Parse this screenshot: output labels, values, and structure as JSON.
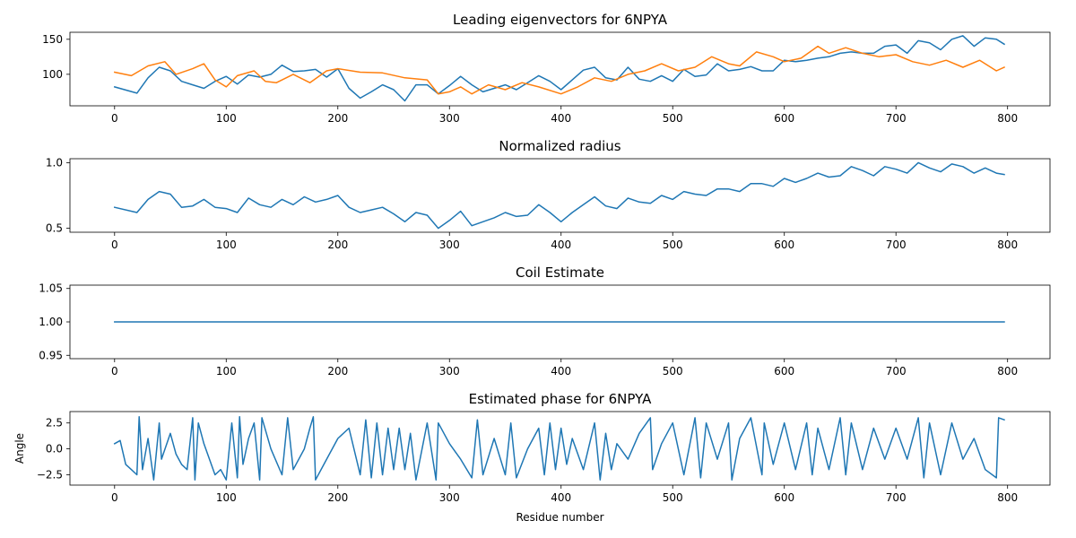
{
  "chart_data": [
    {
      "type": "line",
      "title": "Leading eigenvectors for 6NPYA",
      "xlabel": "",
      "ylabel": "",
      "xlim": [
        -40,
        838
      ],
      "ylim": [
        55,
        160
      ],
      "xticks": [
        0,
        100,
        200,
        300,
        400,
        500,
        600,
        700,
        800
      ],
      "yticks": [
        100,
        150
      ],
      "grid": false,
      "colors": [
        "#1f77b4",
        "#ff7f0e"
      ],
      "series": [
        {
          "x": [
            0,
            20,
            30,
            40,
            50,
            60,
            70,
            80,
            90,
            100,
            110,
            120,
            130,
            140,
            150,
            160,
            170,
            180,
            190,
            200,
            210,
            220,
            230,
            240,
            250,
            260,
            270,
            280,
            290,
            300,
            310,
            320,
            330,
            340,
            350,
            360,
            370,
            380,
            390,
            400,
            410,
            420,
            430,
            440,
            450,
            460,
            470,
            480,
            490,
            500,
            510,
            520,
            530,
            540,
            550,
            560,
            570,
            580,
            590,
            600,
            610,
            620,
            630,
            640,
            650,
            660,
            670,
            680,
            690,
            700,
            710,
            720,
            730,
            740,
            750,
            760,
            770,
            780,
            790,
            797
          ],
          "values": [
            82,
            73,
            95,
            110,
            105,
            90,
            85,
            80,
            90,
            97,
            86,
            99,
            96,
            100,
            113,
            104,
            105,
            107,
            96,
            108,
            80,
            66,
            75,
            85,
            78,
            62,
            85,
            85,
            72,
            84,
            97,
            85,
            75,
            80,
            85,
            78,
            88,
            98,
            90,
            78,
            92,
            106,
            110,
            95,
            92,
            110,
            93,
            90,
            98,
            90,
            107,
            97,
            99,
            115,
            105,
            107,
            111,
            105,
            105,
            120,
            118,
            120,
            123,
            125,
            130,
            132,
            130,
            130,
            140,
            142,
            130,
            148,
            145,
            135,
            150,
            155,
            140,
            152,
            150,
            143
          ]
        },
        {
          "x": [
            0,
            15,
            30,
            45,
            55,
            70,
            80,
            90,
            100,
            110,
            125,
            135,
            145,
            160,
            175,
            190,
            200,
            220,
            240,
            260,
            280,
            290,
            300,
            310,
            320,
            335,
            350,
            365,
            380,
            400,
            415,
            430,
            445,
            460,
            475,
            490,
            505,
            520,
            535,
            550,
            560,
            575,
            590,
            600,
            615,
            630,
            640,
            655,
            670,
            685,
            700,
            715,
            730,
            745,
            760,
            775,
            790,
            797
          ],
          "values": [
            103,
            98,
            112,
            118,
            100,
            108,
            115,
            92,
            82,
            98,
            105,
            90,
            88,
            100,
            88,
            105,
            108,
            103,
            102,
            95,
            92,
            72,
            75,
            82,
            72,
            85,
            78,
            88,
            82,
            72,
            82,
            95,
            90,
            100,
            105,
            115,
            105,
            110,
            125,
            115,
            112,
            132,
            125,
            118,
            123,
            140,
            130,
            138,
            130,
            125,
            128,
            118,
            113,
            120,
            110,
            120,
            105,
            110
          ]
        }
      ]
    },
    {
      "type": "line",
      "title": "Normalized radius",
      "xlabel": "",
      "ylabel": "",
      "xlim": [
        -40,
        838
      ],
      "ylim": [
        0.47,
        1.03
      ],
      "xticks": [
        0,
        100,
        200,
        300,
        400,
        500,
        600,
        700,
        800
      ],
      "yticks": [
        0.5,
        1.0
      ],
      "ytick_labels": [
        "0.5",
        "1.0"
      ],
      "grid": false,
      "colors": [
        "#1f77b4"
      ],
      "series": [
        {
          "x": [
            0,
            20,
            30,
            40,
            50,
            60,
            70,
            80,
            90,
            100,
            110,
            120,
            130,
            140,
            150,
            160,
            170,
            180,
            190,
            200,
            210,
            220,
            230,
            240,
            250,
            260,
            270,
            280,
            290,
            300,
            310,
            320,
            330,
            340,
            350,
            360,
            370,
            380,
            390,
            400,
            410,
            420,
            430,
            440,
            450,
            460,
            470,
            480,
            490,
            500,
            510,
            520,
            530,
            540,
            550,
            560,
            570,
            580,
            590,
            600,
            610,
            620,
            630,
            640,
            650,
            660,
            670,
            680,
            690,
            700,
            710,
            720,
            730,
            740,
            750,
            760,
            770,
            780,
            790,
            797
          ],
          "values": [
            0.66,
            0.62,
            0.72,
            0.78,
            0.76,
            0.66,
            0.67,
            0.72,
            0.66,
            0.65,
            0.62,
            0.73,
            0.68,
            0.66,
            0.72,
            0.68,
            0.74,
            0.7,
            0.72,
            0.75,
            0.66,
            0.62,
            0.64,
            0.66,
            0.61,
            0.55,
            0.62,
            0.6,
            0.5,
            0.56,
            0.63,
            0.52,
            0.55,
            0.58,
            0.62,
            0.59,
            0.6,
            0.68,
            0.62,
            0.55,
            0.62,
            0.68,
            0.74,
            0.67,
            0.65,
            0.73,
            0.7,
            0.69,
            0.75,
            0.72,
            0.78,
            0.76,
            0.75,
            0.8,
            0.8,
            0.78,
            0.84,
            0.84,
            0.82,
            0.88,
            0.85,
            0.88,
            0.92,
            0.89,
            0.9,
            0.97,
            0.94,
            0.9,
            0.97,
            0.95,
            0.92,
            1.0,
            0.96,
            0.93,
            0.99,
            0.97,
            0.92,
            0.96,
            0.92,
            0.91
          ]
        }
      ]
    },
    {
      "type": "line",
      "title": "Coil Estimate",
      "xlabel": "",
      "ylabel": "",
      "xlim": [
        -40,
        838
      ],
      "ylim": [
        0.945,
        1.055
      ],
      "xticks": [
        0,
        100,
        200,
        300,
        400,
        500,
        600,
        700,
        800
      ],
      "yticks": [
        0.95,
        1.0,
        1.05
      ],
      "ytick_labels": [
        "0.95",
        "1.00",
        "1.05"
      ],
      "grid": false,
      "colors": [
        "#1f77b4"
      ],
      "series": [
        {
          "x": [
            0,
            797
          ],
          "values": [
            1.0,
            1.0
          ]
        }
      ]
    },
    {
      "type": "line",
      "title": "Estimated phase for 6NPYA",
      "xlabel": "Residue number",
      "ylabel": "Angle",
      "xlim": [
        -40,
        838
      ],
      "ylim": [
        -3.5,
        3.6
      ],
      "xticks": [
        0,
        100,
        200,
        300,
        400,
        500,
        600,
        700,
        800
      ],
      "yticks": [
        -2.5,
        0.0,
        2.5
      ],
      "ytick_labels": [
        "−2.5",
        "0.0",
        "2.5"
      ],
      "grid": false,
      "colors": [
        "#1f77b4"
      ],
      "series": [
        {
          "x": [
            0,
            5,
            10,
            15,
            20,
            22,
            25,
            30,
            35,
            40,
            42,
            50,
            55,
            60,
            65,
            70,
            72,
            75,
            80,
            85,
            90,
            95,
            100,
            105,
            110,
            112,
            115,
            120,
            125,
            130,
            132,
            140,
            150,
            155,
            160,
            170,
            175,
            178,
            180,
            190,
            200,
            210,
            220,
            225,
            230,
            235,
            240,
            245,
            250,
            255,
            260,
            265,
            270,
            280,
            288,
            290,
            300,
            310,
            320,
            325,
            330,
            340,
            350,
            355,
            360,
            370,
            380,
            385,
            390,
            395,
            400,
            405,
            410,
            420,
            430,
            435,
            440,
            445,
            450,
            460,
            470,
            480,
            482,
            490,
            500,
            510,
            520,
            525,
            530,
            540,
            550,
            553,
            560,
            570,
            580,
            582,
            590,
            600,
            610,
            620,
            625,
            630,
            640,
            650,
            655,
            660,
            670,
            680,
            690,
            700,
            710,
            720,
            725,
            730,
            740,
            750,
            760,
            770,
            780,
            790,
            792,
            797
          ],
          "values": [
            0.5,
            0.8,
            -1.5,
            -2.0,
            -2.5,
            3.1,
            -2.0,
            1.0,
            -3.0,
            2.5,
            -1.0,
            1.5,
            -0.5,
            -1.5,
            -2.0,
            3.0,
            -3.0,
            2.5,
            0.5,
            -1.0,
            -2.5,
            -2.0,
            -3.0,
            2.5,
            -2.8,
            3.1,
            -1.5,
            1.0,
            2.5,
            -3.0,
            3.0,
            0.0,
            -2.5,
            3.0,
            -2.0,
            0.0,
            2.0,
            3.1,
            -3.0,
            -1.0,
            1.0,
            2.0,
            -2.5,
            2.8,
            -2.8,
            2.5,
            -2.5,
            2.0,
            -2.0,
            2.0,
            -2.0,
            1.5,
            -3.0,
            2.5,
            -3.0,
            2.5,
            0.5,
            -1.0,
            -2.8,
            2.8,
            -2.5,
            1.0,
            -2.5,
            2.5,
            -2.8,
            0.0,
            2.0,
            -2.5,
            2.5,
            -2.0,
            2.0,
            -1.5,
            1.0,
            -2.0,
            2.5,
            -3.0,
            1.5,
            -2.0,
            0.5,
            -1.0,
            1.5,
            3.0,
            -2.0,
            0.5,
            2.5,
            -2.5,
            3.0,
            -2.8,
            2.5,
            -1.0,
            2.5,
            -3.0,
            1.0,
            3.0,
            -2.5,
            2.5,
            -1.5,
            2.5,
            -2.0,
            2.5,
            -2.5,
            2.0,
            -2.0,
            3.0,
            -2.5,
            2.5,
            -2.0,
            2.0,
            -1.0,
            2.0,
            -1.0,
            3.0,
            -2.8,
            2.5,
            -2.5,
            2.5,
            -1.0,
            1.0,
            -2.0,
            -2.8,
            3.0,
            2.8
          ]
        }
      ]
    }
  ]
}
